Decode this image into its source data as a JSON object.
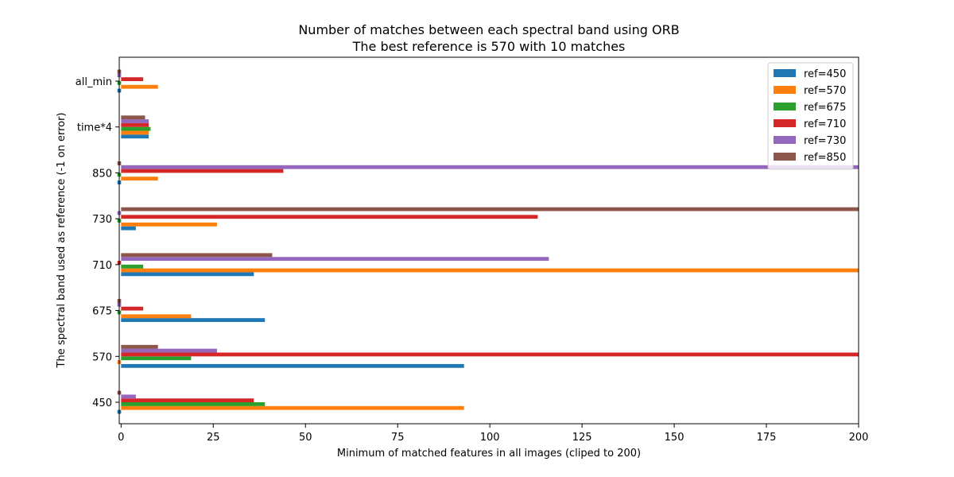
{
  "chart_data": {
    "type": "bar",
    "orientation": "horizontal",
    "title": [
      "Number of matches between each spectral band using ORB",
      "The best reference is 570 with 10 matches"
    ],
    "xlabel": "Minimum of matched features in all images (cliped to 200)",
    "ylabel": "The spectral band used as reference (-1 on error)",
    "xlim": [
      -0.5,
      200
    ],
    "xticks": [
      0,
      25,
      50,
      75,
      100,
      125,
      150,
      175,
      200
    ],
    "categories": [
      "450",
      "570",
      "675",
      "710",
      "730",
      "850",
      "time*4",
      "all_min"
    ],
    "legend_position": "upper right",
    "grid": false,
    "series": [
      {
        "name": "ref=450",
        "color": "#1f77b4",
        "values": [
          -1,
          93,
          39,
          36,
          4,
          -1,
          7.5,
          -1
        ]
      },
      {
        "name": "ref=570",
        "color": "#ff7f0e",
        "values": [
          93,
          -1,
          19,
          200,
          26,
          10,
          7.5,
          10
        ]
      },
      {
        "name": "ref=675",
        "color": "#2ca02c",
        "values": [
          39,
          19,
          -1,
          6,
          -1,
          -1,
          8,
          -1
        ]
      },
      {
        "name": "ref=710",
        "color": "#d62728",
        "values": [
          36,
          200,
          6,
          -1,
          113,
          44,
          7.5,
          6
        ]
      },
      {
        "name": "ref=730",
        "color": "#9467bd",
        "values": [
          4,
          26,
          -1,
          116,
          -1,
          200,
          7.5,
          -1
        ]
      },
      {
        "name": "ref=850",
        "color": "#8c564b",
        "values": [
          -1,
          10,
          -1,
          41,
          200,
          -1,
          6.5,
          -1
        ]
      }
    ]
  }
}
